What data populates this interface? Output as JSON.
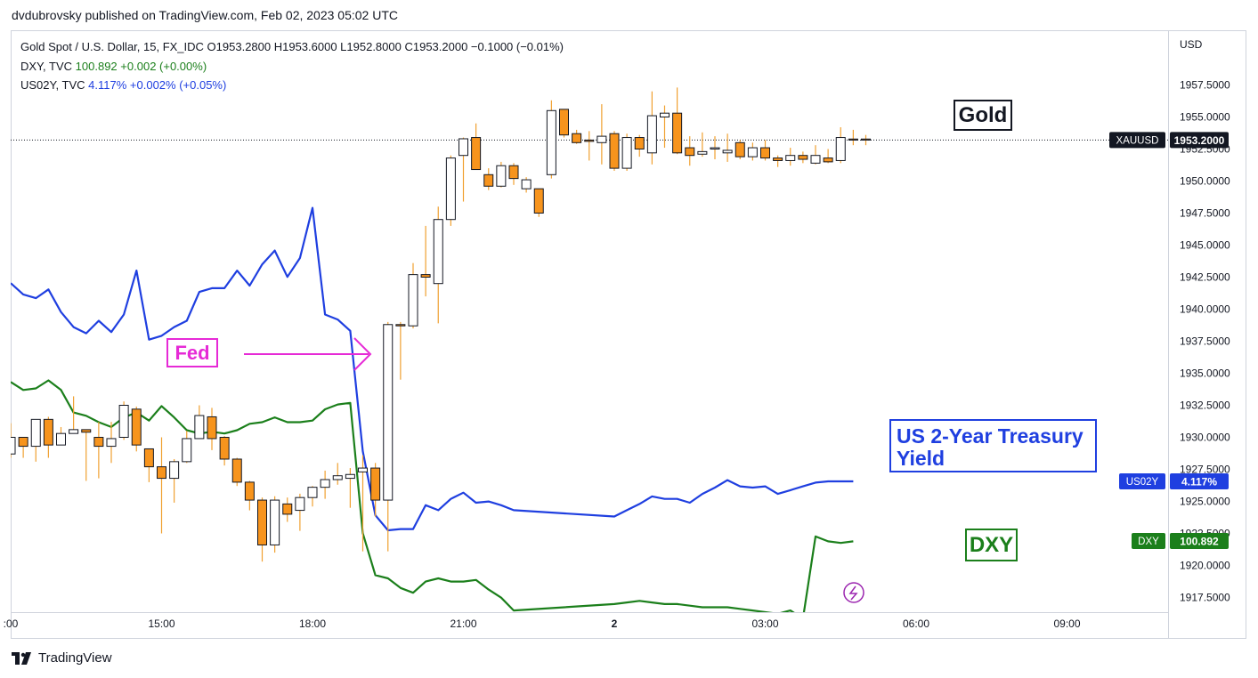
{
  "header": {
    "credit": "dvdubrovsky published on TradingView.com, Feb 02, 2023 05:02 UTC"
  },
  "legend": {
    "gold": {
      "name": "Gold Spot / U.S. Dollar, 15, FX_IDC",
      "ohlc": "O1953.2800  H1953.6000  L1952.8000  C1953.2000  −0.1000 (−0.01%)"
    },
    "dxy": {
      "name": "DXY, TVC",
      "value": "100.892",
      "change": "+0.002 (+0.00%)"
    },
    "us02y": {
      "name": "US02Y, TVC",
      "value": "4.117%",
      "change": "+0.002% (+0.05%)"
    }
  },
  "annotations": {
    "fed": "Fed",
    "gold": "Gold",
    "us2y_line1": "US 2-Year Treasury",
    "us2y_line2": "Yield",
    "dxy": "DXY"
  },
  "footer": {
    "brand": "TradingView"
  },
  "colors": {
    "up_body": "#ffffff",
    "down_body": "#f7941d",
    "candle_border": "#131722",
    "wick": "#f0a030",
    "dxy_line": "#1b7f1b",
    "us02y_line": "#1f3fe0",
    "fed_arrow": "#e62ad6"
  },
  "chart_data": {
    "type": "candlestick",
    "title": "Gold Spot / U.S. Dollar, 15, FX_IDC",
    "currency": "USD",
    "y_axis": {
      "range": [
        1916.0,
        1961.0
      ],
      "ticks": [
        "1957.5000",
        "1955.0000",
        "1952.5000",
        "1950.0000",
        "1947.5000",
        "1945.0000",
        "1942.5000",
        "1940.0000",
        "1937.5000",
        "1935.0000",
        "1932.5000",
        "1930.0000",
        "1927.5000",
        "1925.0000",
        "1922.5000",
        "1920.0000",
        "1917.5000"
      ]
    },
    "x_axis": {
      "ticks": [
        {
          "label": ":00",
          "t": 12
        },
        {
          "label": "15:00",
          "t": 15
        },
        {
          "label": "18:00",
          "t": 18
        },
        {
          "label": "21:00",
          "t": 21
        },
        {
          "label": "2",
          "t": 24
        },
        {
          "label": "03:00",
          "t": 27
        },
        {
          "label": "06:00",
          "t": 30
        },
        {
          "label": "09:00",
          "t": 33
        }
      ],
      "range": [
        12.0,
        34.3
      ]
    },
    "candles": [
      {
        "t": 12.0,
        "o": 1928.7,
        "h": 1931.1,
        "l": 1928.4,
        "c": 1930.0
      },
      {
        "t": 12.25,
        "o": 1930.0,
        "h": 1930.0,
        "l": 1928.4,
        "c": 1929.3
      },
      {
        "t": 12.5,
        "o": 1929.3,
        "h": 1931.4,
        "l": 1928.1,
        "c": 1931.4
      },
      {
        "t": 12.75,
        "o": 1931.4,
        "h": 1931.6,
        "l": 1928.4,
        "c": 1929.4
      },
      {
        "t": 13.0,
        "o": 1929.4,
        "h": 1930.8,
        "l": 1929.4,
        "c": 1930.3
      },
      {
        "t": 13.25,
        "o": 1930.3,
        "h": 1933.2,
        "l": 1930.3,
        "c": 1930.6
      },
      {
        "t": 13.5,
        "o": 1930.6,
        "h": 1930.6,
        "l": 1926.6,
        "c": 1930.4
      },
      {
        "t": 13.75,
        "o": 1930.0,
        "h": 1931.2,
        "l": 1926.8,
        "c": 1929.3
      },
      {
        "t": 14.0,
        "o": 1929.3,
        "h": 1931.2,
        "l": 1928.0,
        "c": 1929.9
      },
      {
        "t": 14.25,
        "o": 1930.0,
        "h": 1932.8,
        "l": 1929.8,
        "c": 1932.5
      },
      {
        "t": 14.5,
        "o": 1932.2,
        "h": 1932.4,
        "l": 1928.9,
        "c": 1929.4
      },
      {
        "t": 14.75,
        "o": 1929.1,
        "h": 1929.1,
        "l": 1926.5,
        "c": 1927.7
      },
      {
        "t": 15.0,
        "o": 1927.7,
        "h": 1930.0,
        "l": 1922.5,
        "c": 1926.8
      },
      {
        "t": 15.25,
        "o": 1926.8,
        "h": 1928.3,
        "l": 1924.9,
        "c": 1928.1
      },
      {
        "t": 15.5,
        "o": 1928.1,
        "h": 1930.5,
        "l": 1928.0,
        "c": 1929.9
      },
      {
        "t": 15.75,
        "o": 1929.9,
        "h": 1932.5,
        "l": 1929.9,
        "c": 1931.7
      },
      {
        "t": 16.0,
        "o": 1931.6,
        "h": 1932.3,
        "l": 1929.0,
        "c": 1929.9
      },
      {
        "t": 16.25,
        "o": 1930.0,
        "h": 1930.1,
        "l": 1927.8,
        "c": 1928.3
      },
      {
        "t": 16.5,
        "o": 1928.3,
        "h": 1928.4,
        "l": 1926.2,
        "c": 1926.5
      },
      {
        "t": 16.75,
        "o": 1926.5,
        "h": 1926.6,
        "l": 1924.3,
        "c": 1925.1
      },
      {
        "t": 17.0,
        "o": 1925.1,
        "h": 1925.3,
        "l": 1920.3,
        "c": 1921.6
      },
      {
        "t": 17.25,
        "o": 1921.6,
        "h": 1925.4,
        "l": 1921.0,
        "c": 1925.1
      },
      {
        "t": 17.5,
        "o": 1924.8,
        "h": 1925.3,
        "l": 1923.4,
        "c": 1924.0
      },
      {
        "t": 17.75,
        "o": 1924.3,
        "h": 1925.6,
        "l": 1922.7,
        "c": 1925.3
      },
      {
        "t": 18.0,
        "o": 1925.3,
        "h": 1926.2,
        "l": 1924.6,
        "c": 1926.1
      },
      {
        "t": 18.25,
        "o": 1926.1,
        "h": 1927.4,
        "l": 1925.2,
        "c": 1926.7
      },
      {
        "t": 18.5,
        "o": 1926.7,
        "h": 1928.0,
        "l": 1926.3,
        "c": 1927.0
      },
      {
        "t": 18.75,
        "o": 1926.8,
        "h": 1927.6,
        "l": 1924.5,
        "c": 1927.1
      },
      {
        "t": 19.0,
        "o": 1927.3,
        "h": 1928.6,
        "l": 1921.1,
        "c": 1927.6
      },
      {
        "t": 19.25,
        "o": 1927.6,
        "h": 1928.0,
        "l": 1923.8,
        "c": 1925.1
      },
      {
        "t": 19.5,
        "o": 1925.1,
        "h": 1939.0,
        "l": 1921.1,
        "c": 1938.8
      },
      {
        "t": 19.75,
        "o": 1938.8,
        "h": 1939.0,
        "l": 1934.5,
        "c": 1938.7
      },
      {
        "t": 20.0,
        "o": 1938.7,
        "h": 1943.6,
        "l": 1938.5,
        "c": 1942.7
      },
      {
        "t": 20.25,
        "o": 1942.7,
        "h": 1946.5,
        "l": 1941.0,
        "c": 1942.5
      },
      {
        "t": 20.5,
        "o": 1942.0,
        "h": 1948.0,
        "l": 1938.9,
        "c": 1947.0
      },
      {
        "t": 20.75,
        "o": 1947.0,
        "h": 1952.0,
        "l": 1946.5,
        "c": 1951.8
      },
      {
        "t": 21.0,
        "o": 1952.0,
        "h": 1953.4,
        "l": 1948.4,
        "c": 1953.3
      },
      {
        "t": 21.25,
        "o": 1953.4,
        "h": 1954.5,
        "l": 1950.9,
        "c": 1950.9
      },
      {
        "t": 21.5,
        "o": 1950.5,
        "h": 1951.0,
        "l": 1949.3,
        "c": 1949.6
      },
      {
        "t": 21.75,
        "o": 1949.6,
        "h": 1951.5,
        "l": 1949.5,
        "c": 1951.2
      },
      {
        "t": 22.0,
        "o": 1951.2,
        "h": 1951.4,
        "l": 1949.7,
        "c": 1950.2
      },
      {
        "t": 22.25,
        "o": 1949.4,
        "h": 1950.3,
        "l": 1949.1,
        "c": 1950.1
      },
      {
        "t": 22.5,
        "o": 1949.4,
        "h": 1949.4,
        "l": 1947.2,
        "c": 1947.5
      },
      {
        "t": 22.75,
        "o": 1950.5,
        "h": 1956.3,
        "l": 1950.2,
        "c": 1955.5
      },
      {
        "t": 23.0,
        "o": 1955.6,
        "h": 1955.6,
        "l": 1953.4,
        "c": 1953.6
      },
      {
        "t": 23.25,
        "o": 1953.7,
        "h": 1954.0,
        "l": 1952.9,
        "c": 1953.0
      },
      {
        "t": 23.5,
        "o": 1953.2,
        "h": 1953.9,
        "l": 1951.6,
        "c": 1953.1
      },
      {
        "t": 23.75,
        "o": 1953.0,
        "h": 1956.0,
        "l": 1951.3,
        "c": 1953.5
      },
      {
        "t": 24.0,
        "o": 1953.7,
        "h": 1953.9,
        "l": 1950.8,
        "c": 1951.0
      },
      {
        "t": 24.25,
        "o": 1951.0,
        "h": 1953.7,
        "l": 1950.8,
        "c": 1953.4
      },
      {
        "t": 24.5,
        "o": 1953.4,
        "h": 1953.6,
        "l": 1951.9,
        "c": 1952.5
      },
      {
        "t": 24.75,
        "o": 1952.2,
        "h": 1957.0,
        "l": 1951.3,
        "c": 1955.1
      },
      {
        "t": 25.0,
        "o": 1955.0,
        "h": 1955.9,
        "l": 1952.6,
        "c": 1955.3
      },
      {
        "t": 25.25,
        "o": 1955.3,
        "h": 1957.3,
        "l": 1952.1,
        "c": 1952.2
      },
      {
        "t": 25.5,
        "o": 1952.6,
        "h": 1953.5,
        "l": 1951.2,
        "c": 1952.0
      },
      {
        "t": 25.75,
        "o": 1952.1,
        "h": 1953.8,
        "l": 1951.9,
        "c": 1952.3
      },
      {
        "t": 26.0,
        "o": 1952.5,
        "h": 1953.5,
        "l": 1951.7,
        "c": 1952.6
      },
      {
        "t": 26.25,
        "o": 1952.2,
        "h": 1953.7,
        "l": 1951.5,
        "c": 1952.4
      },
      {
        "t": 26.5,
        "o": 1953.0,
        "h": 1953.2,
        "l": 1951.7,
        "c": 1951.9
      },
      {
        "t": 26.75,
        "o": 1951.9,
        "h": 1953.0,
        "l": 1951.6,
        "c": 1952.6
      },
      {
        "t": 27.0,
        "o": 1952.6,
        "h": 1953.2,
        "l": 1951.6,
        "c": 1951.8
      },
      {
        "t": 27.25,
        "o": 1951.8,
        "h": 1952.0,
        "l": 1951.1,
        "c": 1951.6
      },
      {
        "t": 27.5,
        "o": 1951.6,
        "h": 1952.6,
        "l": 1951.2,
        "c": 1952.0
      },
      {
        "t": 27.75,
        "o": 1952.0,
        "h": 1952.3,
        "l": 1951.4,
        "c": 1951.7
      },
      {
        "t": 28.0,
        "o": 1951.4,
        "h": 1952.8,
        "l": 1951.3,
        "c": 1952.0
      },
      {
        "t": 28.25,
        "o": 1951.8,
        "h": 1952.5,
        "l": 1951.4,
        "c": 1951.5
      },
      {
        "t": 28.5,
        "o": 1951.6,
        "h": 1954.2,
        "l": 1951.4,
        "c": 1953.4
      },
      {
        "t": 28.75,
        "o": 1953.28,
        "h": 1954.0,
        "l": 1952.8,
        "c": 1953.2
      },
      {
        "t": 29.0,
        "o": 1953.28,
        "h": 1953.6,
        "l": 1952.8,
        "c": 1953.2
      }
    ],
    "series": [
      {
        "name": "DXY, TVC",
        "last": "100.892",
        "x": [
          12.0,
          12.25,
          12.5,
          12.75,
          13.0,
          13.25,
          13.5,
          13.75,
          14.0,
          14.25,
          14.5,
          14.75,
          15.0,
          15.25,
          15.5,
          15.75,
          16.0,
          16.25,
          16.5,
          16.75,
          17.0,
          17.25,
          17.5,
          17.75,
          18.0,
          18.25,
          18.5,
          18.75,
          19.0,
          19.25,
          19.5,
          19.75,
          20.0,
          20.25,
          20.5,
          20.75,
          21.0,
          21.25,
          21.5,
          21.75,
          22.0,
          24.0,
          24.25,
          24.5,
          24.75,
          25.0,
          25.25,
          25.5,
          25.75,
          26.0,
          26.25,
          26.5,
          26.75,
          27.0,
          27.25,
          27.5,
          27.75,
          28.0,
          28.25,
          28.5,
          28.75
        ],
        "values": [
          101.88,
          101.83,
          101.84,
          101.89,
          101.83,
          101.69,
          101.67,
          101.63,
          101.6,
          101.66,
          101.69,
          101.64,
          101.73,
          101.66,
          101.58,
          101.56,
          101.57,
          101.56,
          101.58,
          101.62,
          101.63,
          101.66,
          101.63,
          101.63,
          101.64,
          101.71,
          101.74,
          101.75,
          100.94,
          100.68,
          100.66,
          100.6,
          100.57,
          100.64,
          100.66,
          100.64,
          100.64,
          100.65,
          100.59,
          100.54,
          100.46,
          100.5,
          100.51,
          100.52,
          100.51,
          100.5,
          100.5,
          100.49,
          100.48,
          100.48,
          100.48,
          100.47,
          100.46,
          100.45,
          100.44,
          100.46,
          100.41,
          100.92,
          100.89,
          100.88,
          100.89
        ]
      },
      {
        "name": "US02Y, TVC",
        "last": "4.117%",
        "x": [
          12.0,
          12.25,
          12.5,
          12.75,
          13.0,
          13.25,
          13.5,
          13.75,
          14.0,
          14.25,
          14.5,
          14.75,
          15.0,
          15.25,
          15.5,
          15.75,
          16.0,
          16.25,
          16.5,
          16.75,
          17.0,
          17.25,
          17.5,
          17.75,
          18.0,
          18.25,
          18.5,
          18.75,
          19.0,
          19.25,
          19.5,
          19.75,
          20.0,
          20.25,
          20.5,
          20.75,
          21.0,
          21.25,
          21.5,
          21.75,
          22.0,
          24.0,
          24.25,
          24.5,
          24.75,
          25.0,
          25.25,
          25.5,
          25.75,
          26.0,
          26.25,
          26.5,
          26.75,
          27.0,
          27.25,
          27.5,
          27.75,
          28.0,
          28.25,
          28.5,
          28.75
        ],
        "values": [
          4.275,
          4.266,
          4.263,
          4.27,
          4.252,
          4.24,
          4.235,
          4.245,
          4.236,
          4.25,
          4.285,
          4.23,
          4.233,
          4.24,
          4.245,
          4.268,
          4.271,
          4.271,
          4.285,
          4.273,
          4.29,
          4.301,
          4.28,
          4.295,
          4.335,
          4.25,
          4.246,
          4.237,
          4.141,
          4.09,
          4.078,
          4.079,
          4.079,
          4.098,
          4.094,
          4.103,
          4.108,
          4.1,
          4.101,
          4.098,
          4.094,
          4.089,
          4.094,
          4.099,
          4.105,
          4.103,
          4.103,
          4.1,
          4.107,
          4.112,
          4.118,
          4.113,
          4.112,
          4.113,
          4.107,
          4.11,
          4.113,
          4.116,
          4.117,
          4.117,
          4.117
        ]
      }
    ],
    "price_labels": [
      {
        "name": "XAUUSD",
        "value": "1953.2000"
      },
      {
        "name": "US02Y",
        "value": "4.117%"
      },
      {
        "name": "DXY",
        "value": "100.892"
      }
    ]
  }
}
